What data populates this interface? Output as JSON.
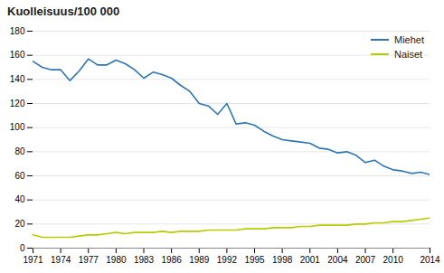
{
  "chart_data": {
    "type": "line",
    "title": "Kuolleisuus/100 000",
    "x": [
      1971,
      1972,
      1973,
      1974,
      1975,
      1976,
      1977,
      1978,
      1979,
      1980,
      1981,
      1982,
      1983,
      1984,
      1985,
      1986,
      1987,
      1988,
      1989,
      1990,
      1991,
      1992,
      1993,
      1994,
      1995,
      1996,
      1997,
      1998,
      1999,
      2000,
      2001,
      2002,
      2003,
      2004,
      2005,
      2006,
      2007,
      2008,
      2009,
      2010,
      2011,
      2012,
      2013,
      2014
    ],
    "series": [
      {
        "name": "Miehet",
        "color": "#2E75B6",
        "values": [
          155,
          150,
          148,
          148,
          139,
          147,
          157,
          152,
          152,
          156,
          153,
          148,
          141,
          146,
          144,
          141,
          135,
          130,
          120,
          118,
          111,
          120,
          103,
          104,
          102,
          97,
          93,
          90,
          89,
          88,
          87,
          83,
          82,
          79,
          80,
          77,
          71,
          73,
          68,
          65,
          64,
          62,
          63,
          61
        ]
      },
      {
        "name": "Naiset",
        "color": "#B8CC00",
        "values": [
          11,
          9,
          9,
          9,
          9,
          10,
          11,
          11,
          12,
          13,
          12,
          13,
          13,
          13,
          14,
          13,
          14,
          14,
          14,
          15,
          15,
          15,
          15,
          16,
          16,
          16,
          17,
          17,
          17,
          18,
          18,
          19,
          19,
          19,
          19,
          20,
          20,
          21,
          21,
          22,
          22,
          23,
          24,
          25
        ]
      }
    ],
    "xlim": [
      1971,
      2014
    ],
    "xticks": [
      1971,
      1974,
      1977,
      1980,
      1983,
      1986,
      1989,
      1992,
      1995,
      1998,
      2001,
      2004,
      2007,
      2010,
      2014
    ],
    "ylim": [
      0,
      180
    ],
    "yticks": [
      0,
      20,
      40,
      60,
      80,
      100,
      120,
      140,
      160,
      180
    ],
    "grid": "y",
    "legend": "upper right"
  }
}
